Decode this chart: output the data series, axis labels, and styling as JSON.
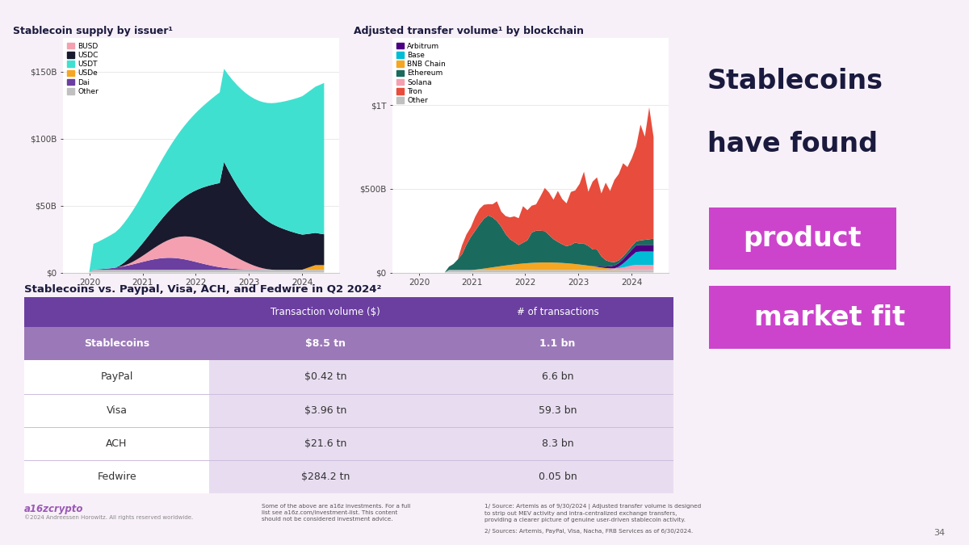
{
  "bg_color": "#f8f0f8",
  "bg_color_left": "#ffffff",
  "right_panel_color": "#f2e4f5",
  "divider_color": "#8b5ba6",
  "chart1_title": "Stablecoin supply by issuer¹",
  "chart1_colors": {
    "BUSD": "#f4a0b0",
    "USDC": "#1a1a2e",
    "USDT": "#40e0d0",
    "USDe": "#f5a623",
    "Dai": "#6b3fa0",
    "Other": "#c0c0c0"
  },
  "chart1_legend_order": [
    "BUSD",
    "USDC",
    "USDT",
    "USDe",
    "Dai",
    "Other"
  ],
  "chart2_title": "Adjusted transfer volume¹ by blockchain",
  "chart2_colors": {
    "Arbitrum": "#4b0082",
    "Base": "#00bcd4",
    "BNB Chain": "#f5a623",
    "Ethereum": "#1a6b5e",
    "Solana": "#f4a0b0",
    "Tron": "#e74c3c",
    "Other": "#c0c0c0"
  },
  "chart2_legend_order": [
    "Arbitrum",
    "Base",
    "BNB Chain",
    "Ethereum",
    "Solana",
    "Tron",
    "Other"
  ],
  "table_title": "Stablecoins vs. Paypal, Visa, ACH, and Fedwire in Q2 2024²",
  "table_header_bg": "#6b3fa0",
  "table_header_text": "#ffffff",
  "table_stablecoin_bg": "#9b79b8",
  "table_stablecoin_text": "#ffffff",
  "table_row_bg_alt": "#e8ddf0",
  "table_row_bg_white": "#ffffff",
  "table_divider": "#ccbbdd",
  "table_col_headers": [
    "",
    "Transaction volume ($)",
    "# of transactions"
  ],
  "table_rows": [
    [
      "Stablecoins",
      "$8.5 tn",
      "1.1 bn"
    ],
    [
      "PayPal",
      "$0.42 tn",
      "6.6 bn"
    ],
    [
      "Visa",
      "$3.96 tn",
      "59.3 bn"
    ],
    [
      "ACH",
      "$21.6 tn",
      "8.3 bn"
    ],
    [
      "Fedwire",
      "$284.2 tn",
      "0.05 bn"
    ]
  ],
  "right_title_line1": "Stablecoins",
  "right_title_line2": "have found",
  "right_highlight1": "product",
  "right_highlight2": "market fit",
  "right_title_color": "#1a1a3e",
  "right_highlight_bg": "#cc44cc",
  "right_highlight_text": "#ffffff",
  "footer_left": "a16zcrypto",
  "footer_sub": "©2024 Andreessen Horowitz. All rights reserved worldwide.",
  "footer_note1": "Some of the above are a16z investments. For a full\nlist see a16z.com/investment-list. This content\nshould not be considered investment advice.",
  "footer_note2": "1/ Source: Artemis as of 9/30/2024 | Adjusted transfer volume is designed\nto strip out MEV activity and intra-centralized exchange transfers,\nproviding a clearer picture of genuine user-driven stablecoin activity.",
  "footer_note3": "2/ Sources: Artemis, PayPal, Visa, Nacha, FRB Services as of 6/30/2024.",
  "page_number": "34"
}
